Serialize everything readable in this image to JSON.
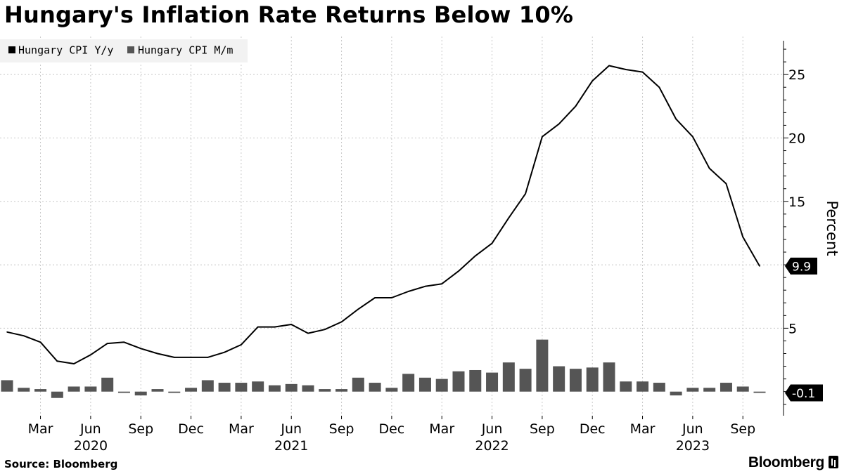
{
  "title": "Hungary's Inflation Rate Returns Below 10%",
  "source": "Source: Bloomberg",
  "brand": "Bloomberg",
  "colors": {
    "line": "#000000",
    "bars": "#555555",
    "grid": "#c8c8c8",
    "callout": "#000000",
    "legend_bg": "#f2f2f2"
  },
  "chart_data": {
    "type": "line+bar",
    "title": "Hungary's Inflation Rate Returns Below 10%",
    "ylabel": "Percent",
    "ylim": [
      -1.9,
      28
    ],
    "yticks": [
      5,
      10,
      15,
      20,
      25
    ],
    "ytick_labels": [
      "5",
      "",
      "15",
      "20",
      "25"
    ],
    "legend": [
      "Hungary CPI Y/y",
      "Hungary CPI M/m"
    ],
    "legend_position": "top-left",
    "x_tick_labels": [
      "Mar",
      "Jun",
      "Sep",
      "Dec",
      "Mar",
      "Jun",
      "Sep",
      "Dec",
      "Mar",
      "Jun",
      "Sep",
      "Dec",
      "Mar",
      "Jun",
      "Sep"
    ],
    "x_tick_months": [
      2,
      5,
      8,
      11,
      14,
      17,
      20,
      23,
      26,
      29,
      32,
      35,
      38,
      41,
      44
    ],
    "year_labels": [
      "2020",
      "2021",
      "2022",
      "2023"
    ],
    "year_months": [
      5,
      17,
      29,
      41
    ],
    "month_domain": [
      0,
      45.5
    ],
    "months": [
      "2020-01",
      "2020-02",
      "2020-03",
      "2020-04",
      "2020-05",
      "2020-06",
      "2020-07",
      "2020-08",
      "2020-09",
      "2020-10",
      "2020-11",
      "2020-12",
      "2021-01",
      "2021-02",
      "2021-03",
      "2021-04",
      "2021-05",
      "2021-06",
      "2021-07",
      "2021-08",
      "2021-09",
      "2021-10",
      "2021-11",
      "2021-12",
      "2022-01",
      "2022-02",
      "2022-03",
      "2022-04",
      "2022-05",
      "2022-06",
      "2022-07",
      "2022-08",
      "2022-09",
      "2022-10",
      "2022-11",
      "2022-12",
      "2023-01",
      "2023-02",
      "2023-03",
      "2023-04",
      "2023-05",
      "2023-06",
      "2023-07",
      "2023-08",
      "2023-09",
      "2023-10"
    ],
    "series": [
      {
        "name": "Hungary CPI Y/y",
        "kind": "line",
        "values": [
          4.7,
          4.4,
          3.9,
          2.4,
          2.2,
          2.9,
          3.8,
          3.9,
          3.4,
          3.0,
          2.7,
          2.7,
          2.7,
          3.1,
          3.7,
          5.1,
          5.1,
          5.3,
          4.6,
          4.9,
          5.5,
          6.5,
          7.4,
          7.4,
          7.9,
          8.3,
          8.5,
          9.5,
          10.7,
          11.7,
          13.7,
          15.6,
          20.1,
          21.1,
          22.5,
          24.5,
          25.7,
          25.4,
          25.2,
          24.0,
          21.5,
          20.1,
          17.6,
          16.4,
          12.2,
          9.9
        ]
      },
      {
        "name": "Hungary CPI M/m",
        "kind": "bar",
        "values": [
          0.9,
          0.3,
          0.2,
          -0.5,
          0.4,
          0.4,
          1.1,
          -0.1,
          -0.3,
          0.2,
          -0.1,
          0.3,
          0.9,
          0.7,
          0.7,
          0.8,
          0.5,
          0.6,
          0.5,
          0.2,
          0.2,
          1.1,
          0.7,
          0.3,
          1.4,
          1.1,
          1.0,
          1.6,
          1.7,
          1.5,
          2.3,
          1.8,
          4.1,
          2.0,
          1.8,
          1.9,
          2.3,
          0.8,
          0.8,
          0.7,
          -0.3,
          0.3,
          0.3,
          0.7,
          0.4,
          -0.1
        ]
      }
    ],
    "callouts": [
      {
        "series": "Hungary CPI Y/y",
        "label": "9.9",
        "value": 9.9
      },
      {
        "series": "Hungary CPI M/m",
        "label": "-0.1",
        "value": -0.1
      }
    ]
  }
}
